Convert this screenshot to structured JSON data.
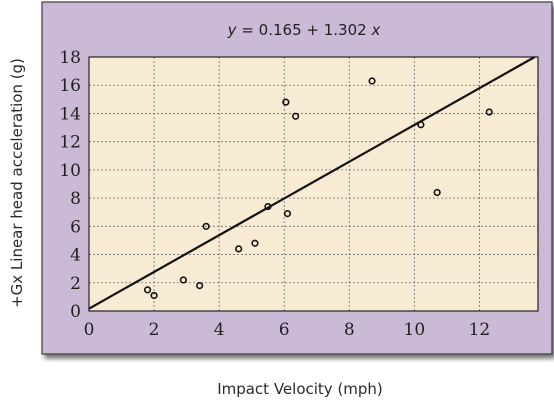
{
  "chart_data": {
    "type": "scatter",
    "title": "",
    "xlabel": "Impact Velocity (mph)",
    "ylabel": "+Gx Linear head acceleration (g)",
    "equation": {
      "lhs": "y",
      "rhs": "= 0.165 + 1.302",
      "var": "x"
    },
    "regression": {
      "intercept": 0.165,
      "slope": 1.302
    },
    "xlim": [
      0,
      13.8
    ],
    "ylim": [
      0,
      18
    ],
    "xticks": [
      "0",
      "2",
      "4",
      "6",
      "8",
      "10",
      "12"
    ],
    "yticks": [
      "0",
      "2",
      "4",
      "6",
      "8",
      "10",
      "12",
      "14",
      "16",
      "18"
    ],
    "grid": true,
    "series": [
      {
        "points": [
          {
            "x": 1.8,
            "y": 1.5
          },
          {
            "x": 2.0,
            "y": 1.1
          },
          {
            "x": 2.9,
            "y": 2.2
          },
          {
            "x": 3.4,
            "y": 1.8
          },
          {
            "x": 3.6,
            "y": 6.0
          },
          {
            "x": 4.6,
            "y": 4.4
          },
          {
            "x": 5.1,
            "y": 4.8
          },
          {
            "x": 5.5,
            "y": 7.4
          },
          {
            "x": 6.05,
            "y": 14.8
          },
          {
            "x": 6.1,
            "y": 6.9
          },
          {
            "x": 6.35,
            "y": 13.8
          },
          {
            "x": 8.7,
            "y": 16.3
          },
          {
            "x": 10.2,
            "y": 13.2
          },
          {
            "x": 10.7,
            "y": 8.4
          },
          {
            "x": 12.3,
            "y": 14.1
          }
        ]
      }
    ],
    "colors": {
      "panel": "#cbbad6",
      "panel_border": "#3a3a3a",
      "plot_bg": "#f7ecd3",
      "grid": "#6e6e6e",
      "line": "#111111",
      "marker": "#111111"
    }
  }
}
